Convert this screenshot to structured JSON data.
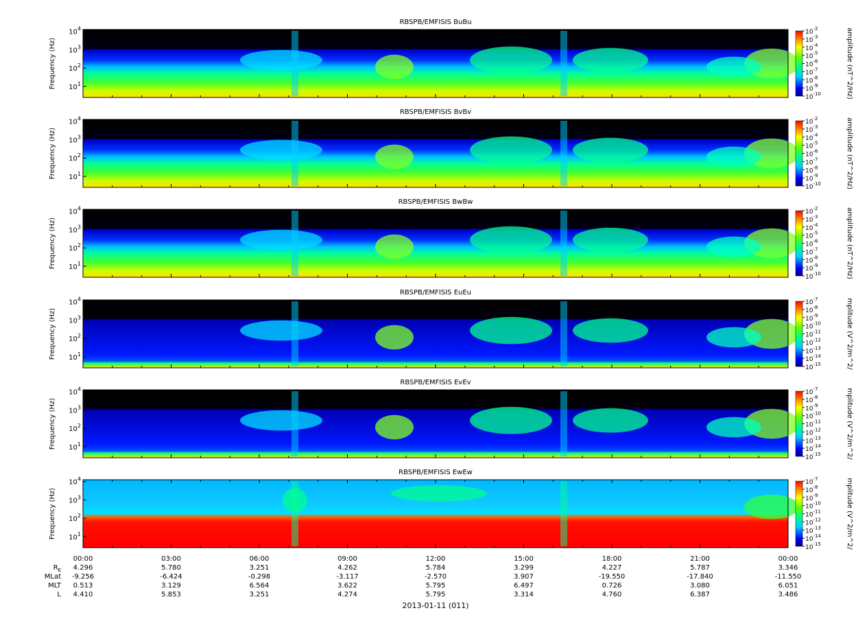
{
  "figure": {
    "date_label": "2013-01-11 (011)",
    "time_ticks": [
      "00:00",
      "03:00",
      "06:00",
      "09:00",
      "12:00",
      "15:00",
      "18:00",
      "21:00",
      "00:00"
    ],
    "ephemeris": [
      {
        "label": "R",
        "sub": "E",
        "values": [
          "4.296",
          "5.780",
          "3.251",
          "4.262",
          "5.784",
          "3.299",
          "4.227",
          "5.787",
          "3.346"
        ]
      },
      {
        "label": "MLat",
        "sub": "",
        "values": [
          "-9.256",
          "-6.424",
          "-0.298",
          "-3.117",
          "-2.570",
          "3.907",
          "-19.550",
          "-17.840",
          "-11.550"
        ]
      },
      {
        "label": "MLT",
        "sub": "",
        "values": [
          "0.513",
          "3.129",
          "6.564",
          "3.622",
          "5.795",
          "6.497",
          "0.726",
          "3.080",
          "6.051"
        ]
      },
      {
        "label": "L",
        "sub": "",
        "values": [
          "4.410",
          "5.853",
          "3.251",
          "4.274",
          "5.795",
          "3.314",
          "4.760",
          "6.387",
          "3.486"
        ]
      }
    ]
  },
  "chart_data": [
    {
      "type": "heatmap",
      "title": "RBSPB/EMFISIS  BuBu",
      "ylabel": "Frequency (Hz)",
      "y_scale": "log",
      "y_ticks": [
        "10^1",
        "10^2",
        "10^3",
        "10^4"
      ],
      "colorbar_label": "amplitude (nT^2/Hz)",
      "colorbar_ticks": [
        "10^-10",
        "10^-9",
        "10^-8",
        "10^-7",
        "10^-6",
        "10^-5",
        "10^-4",
        "10^-3",
        "10^-2"
      ],
      "kind": "B"
    },
    {
      "type": "heatmap",
      "title": "RBSPB/EMFISIS  BvBv",
      "ylabel": "Frequency (Hz)",
      "y_scale": "log",
      "y_ticks": [
        "10^1",
        "10^2",
        "10^3",
        "10^4"
      ],
      "colorbar_label": "amplitude (nT^2/Hz)",
      "colorbar_ticks": [
        "10^-10",
        "10^-9",
        "10^-8",
        "10^-7",
        "10^-6",
        "10^-5",
        "10^-4",
        "10^-3",
        "10^-2"
      ],
      "kind": "B"
    },
    {
      "type": "heatmap",
      "title": "RBSPB/EMFISIS  BwBw",
      "ylabel": "Frequency (Hz)",
      "y_scale": "log",
      "y_ticks": [
        "10^1",
        "10^2",
        "10^3",
        "10^4"
      ],
      "colorbar_label": "amplitude (nT^2/Hz)",
      "colorbar_ticks": [
        "10^-10",
        "10^-9",
        "10^-8",
        "10^-7",
        "10^-6",
        "10^-5",
        "10^-4",
        "10^-3",
        "10^-2"
      ],
      "kind": "B"
    },
    {
      "type": "heatmap",
      "title": "RBSPB/EMFISIS  EuEu",
      "ylabel": "Frequency (Hz)",
      "y_scale": "log",
      "y_ticks": [
        "10^1",
        "10^2",
        "10^3",
        "10^4"
      ],
      "colorbar_label": "mplitude (V^2/m^2/",
      "colorbar_ticks": [
        "10^-15",
        "10^-14",
        "10^-13",
        "10^-12",
        "10^-11",
        "10^-10",
        "10^-9",
        "10^-8",
        "10^-7"
      ],
      "kind": "E"
    },
    {
      "type": "heatmap",
      "title": "RBSPB/EMFISIS  EvEv",
      "ylabel": "Frequency (Hz)",
      "y_scale": "log",
      "y_ticks": [
        "10^1",
        "10^2",
        "10^3",
        "10^4"
      ],
      "colorbar_label": "mplitude (V^2/m^2/",
      "colorbar_ticks": [
        "10^-15",
        "10^-14",
        "10^-13",
        "10^-12",
        "10^-11",
        "10^-10",
        "10^-9",
        "10^-8",
        "10^-7"
      ],
      "kind": "E"
    },
    {
      "type": "heatmap",
      "title": "RBSPB/EMFISIS  EwEw",
      "ylabel": "Frequency (Hz)",
      "y_scale": "log",
      "y_ticks": [
        "10^1",
        "10^2",
        "10^3",
        "10^4"
      ],
      "colorbar_label": "mplitude (V^2/m^2/",
      "colorbar_ticks": [
        "10^-15",
        "10^-14",
        "10^-13",
        "10^-12",
        "10^-11",
        "10^-10",
        "10^-9",
        "10^-8",
        "10^-7"
      ],
      "kind": "Ew"
    }
  ]
}
